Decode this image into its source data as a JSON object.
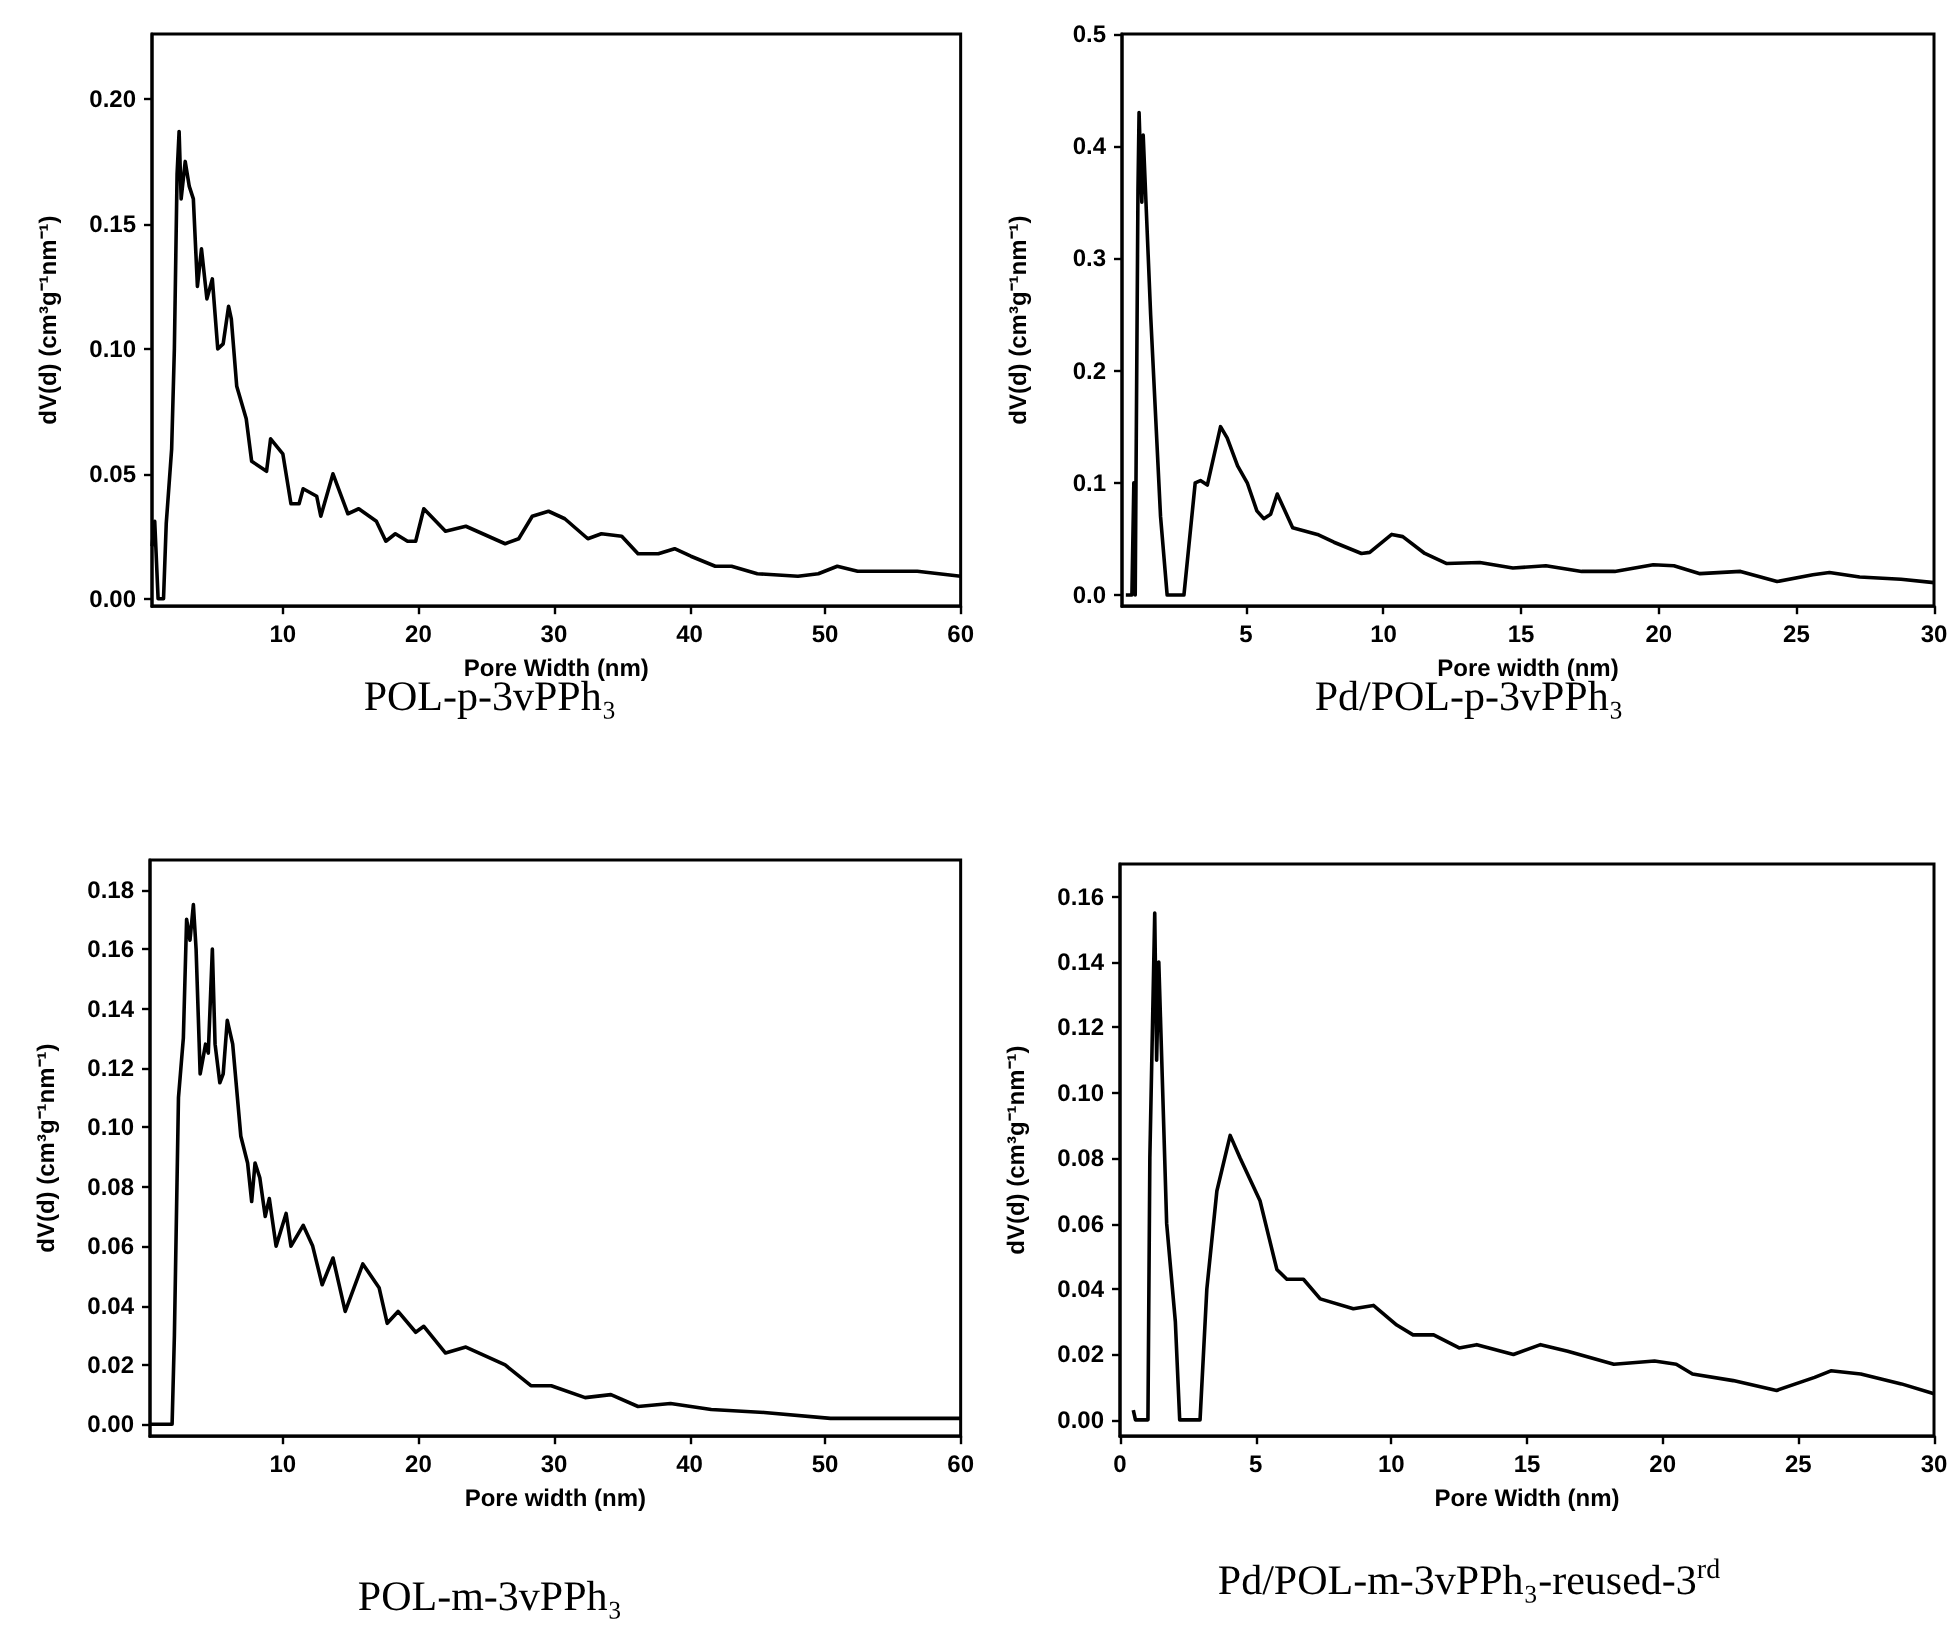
{
  "chart_data": [
    {
      "type": "line",
      "title": "POL-p-3vPPh₃",
      "xlabel": "Pore Width (nm)",
      "ylabel": "dV(d) (cm³g⁻¹nm⁻¹)",
      "color": "#000000",
      "grid": false,
      "xlim": [
        0.35,
        60
      ],
      "xticks": [
        10,
        20,
        30,
        40,
        50,
        60
      ],
      "ylim": [
        -0.003,
        0.226
      ],
      "yticks": [
        {
          "value": 0,
          "label": "0.00"
        },
        0.05,
        {
          "value": 0.1,
          "label": "0.10"
        },
        0.15,
        {
          "value": 0.2,
          "label": "0.20"
        }
      ],
      "x": [
        0.35,
        0.55,
        0.8,
        1.2,
        1.4,
        1.8,
        2.0,
        2.2,
        2.35,
        2.5,
        2.8,
        3.1,
        3.4,
        3.7,
        4.0,
        4.4,
        4.8,
        5.2,
        5.6,
        6.0,
        6.2,
        6.6,
        7.3,
        7.7,
        8.8,
        9.1,
        10.0,
        10.6,
        11.2,
        11.5,
        12.5,
        12.8,
        13.7,
        14.8,
        15.6,
        16.9,
        17.6,
        18.3,
        19.2,
        19.8,
        20.4,
        22.0,
        23.5,
        26.4,
        27.4,
        28.4,
        29.6,
        30.8,
        32.5,
        33.5,
        35.0,
        36.2,
        37.7,
        38.9,
        40.1,
        41.9,
        43.1,
        45.0,
        48.0,
        49.5,
        50.9,
        52.4,
        56.8,
        60
      ],
      "values": [
        0.021,
        0.031,
        0.0,
        0.0,
        0.03,
        0.06,
        0.1,
        0.17,
        0.187,
        0.16,
        0.175,
        0.165,
        0.16,
        0.125,
        0.14,
        0.12,
        0.128,
        0.1,
        0.102,
        0.117,
        0.112,
        0.085,
        0.072,
        0.055,
        0.051,
        0.064,
        0.058,
        0.038,
        0.038,
        0.044,
        0.041,
        0.033,
        0.05,
        0.034,
        0.036,
        0.031,
        0.023,
        0.026,
        0.023,
        0.023,
        0.036,
        0.027,
        0.029,
        0.022,
        0.024,
        0.033,
        0.035,
        0.032,
        0.024,
        0.026,
        0.025,
        0.018,
        0.018,
        0.02,
        0.017,
        0.013,
        0.013,
        0.01,
        0.009,
        0.01,
        0.013,
        0.011,
        0.011,
        0.009
      ]
    },
    {
      "type": "line",
      "title": "Pd/POL-p-3vPPh₃",
      "xlabel": "Pore width (nm)",
      "ylabel": "dV(d) (cm³g⁻¹nm⁻¹)",
      "color": "#000000",
      "grid": false,
      "xlim": [
        0.5,
        30
      ],
      "xticks": [
        5,
        10,
        15,
        20,
        25,
        30
      ],
      "ylim": [
        -0.01,
        0.5
      ],
      "yticks": [
        {
          "value": 0,
          "label": "0.0"
        },
        0.1,
        0.2,
        0.3,
        0.4,
        0.5
      ],
      "x": [
        0.64,
        0.86,
        0.93,
        0.98,
        1.08,
        1.12,
        1.22,
        1.27,
        1.54,
        1.9,
        2.14,
        2.75,
        3.16,
        3.35,
        3.6,
        4.08,
        4.32,
        4.7,
        5.05,
        5.4,
        5.65,
        5.9,
        6.14,
        6.7,
        7.6,
        8.2,
        9.2,
        9.5,
        10.3,
        10.7,
        11.5,
        12.3,
        13.5,
        14.7,
        15.9,
        17.2,
        18.4,
        19.8,
        20.55,
        21.5,
        22.97,
        24.3,
        25.6,
        26.2,
        27.3,
        28.8,
        30
      ],
      "values": [
        0.0,
        0.0,
        0.1,
        0.0,
        0.36,
        0.43,
        0.35,
        0.41,
        0.25,
        0.07,
        0.0,
        0.0,
        0.1,
        0.102,
        0.098,
        0.15,
        0.14,
        0.115,
        0.1,
        0.075,
        0.068,
        0.072,
        0.09,
        0.06,
        0.054,
        0.047,
        0.037,
        0.038,
        0.054,
        0.052,
        0.037,
        0.028,
        0.029,
        0.024,
        0.026,
        0.021,
        0.021,
        0.027,
        0.026,
        0.019,
        0.021,
        0.012,
        0.018,
        0.02,
        0.016,
        0.014,
        0.011
      ]
    },
    {
      "type": "line",
      "title": "POL-m-3vPPh₃",
      "xlabel": "Pore width (nm)",
      "ylabel": "dV(d) (cm³g⁻¹nm⁻¹)",
      "color": "#000000",
      "grid": false,
      "xlim": [
        0.2,
        60
      ],
      "xticks": [
        10,
        20,
        30,
        40,
        50,
        60
      ],
      "ylim": [
        -0.004,
        0.19
      ],
      "yticks": [
        {
          "value": 0,
          "label": "0.00"
        },
        0.02,
        0.04,
        0.06,
        0.08,
        {
          "value": 0.1,
          "label": "0.10"
        },
        0.12,
        0.14,
        0.16,
        0.18
      ],
      "x": [
        0.2,
        1.83,
        2.0,
        2.3,
        2.66,
        2.9,
        3.15,
        3.4,
        3.6,
        3.9,
        4.3,
        4.5,
        4.8,
        5.0,
        5.35,
        5.6,
        5.9,
        6.3,
        6.9,
        7.4,
        7.7,
        7.95,
        8.3,
        8.7,
        9.0,
        9.5,
        10.24,
        10.6,
        11.5,
        12.2,
        12.9,
        13.7,
        14.6,
        15.9,
        17.1,
        17.7,
        18.5,
        19.8,
        20.4,
        22.0,
        23.5,
        26.4,
        28.3,
        29.8,
        32.3,
        34.2,
        36.2,
        38.6,
        41.6,
        45.5,
        50.4,
        60
      ],
      "values": [
        0.0,
        0.0,
        0.03,
        0.11,
        0.13,
        0.17,
        0.163,
        0.175,
        0.16,
        0.118,
        0.128,
        0.125,
        0.16,
        0.128,
        0.115,
        0.118,
        0.136,
        0.128,
        0.097,
        0.088,
        0.075,
        0.088,
        0.083,
        0.07,
        0.076,
        0.06,
        0.071,
        0.06,
        0.067,
        0.06,
        0.047,
        0.056,
        0.038,
        0.054,
        0.046,
        0.034,
        0.038,
        0.031,
        0.033,
        0.024,
        0.026,
        0.02,
        0.013,
        0.013,
        0.009,
        0.01,
        0.006,
        0.007,
        0.005,
        0.004,
        0.002,
        0.002
      ]
    },
    {
      "type": "line",
      "title": "Pd/POL-m-3vPPh₃-reused-3$^{rd}$",
      "xlabel": "Pore Width (nm)",
      "ylabel": "dV(d) (cm³g⁻¹nm⁻¹)",
      "color": "#000000",
      "grid": false,
      "xlim": [
        0,
        30
      ],
      "xticks": [
        0,
        5,
        10,
        15,
        20,
        25,
        30
      ],
      "ylim": [
        -0.005,
        0.17
      ],
      "yticks": [
        {
          "value": 0,
          "label": "0.00"
        },
        0.02,
        0.04,
        0.06,
        0.08,
        {
          "value": 0.1,
          "label": "0.10"
        },
        0.12,
        0.14,
        0.16
      ],
      "x": [
        0.49,
        0.57,
        1.03,
        1.1,
        1.28,
        1.35,
        1.43,
        1.72,
        2.04,
        2.2,
        2.95,
        3.2,
        3.57,
        4.06,
        4.43,
        5.16,
        5.78,
        6.15,
        6.76,
        7.38,
        8.6,
        9.34,
        10.2,
        10.8,
        11.56,
        12.5,
        13.15,
        14.5,
        15.5,
        16.5,
        18.2,
        19.7,
        20.5,
        21.1,
        22.6,
        24.2,
        25.6,
        26.2,
        27.3,
        28.8,
        30
      ],
      "values": [
        0.003,
        0.0,
        0.0,
        0.08,
        0.155,
        0.11,
        0.14,
        0.06,
        0.03,
        0.0,
        0.0,
        0.04,
        0.07,
        0.087,
        0.08,
        0.067,
        0.046,
        0.043,
        0.043,
        0.037,
        0.034,
        0.035,
        0.029,
        0.026,
        0.026,
        0.022,
        0.023,
        0.02,
        0.023,
        0.021,
        0.017,
        0.018,
        0.017,
        0.014,
        0.012,
        0.009,
        0.013,
        0.015,
        0.014,
        0.011,
        0.008
      ]
    }
  ]
}
